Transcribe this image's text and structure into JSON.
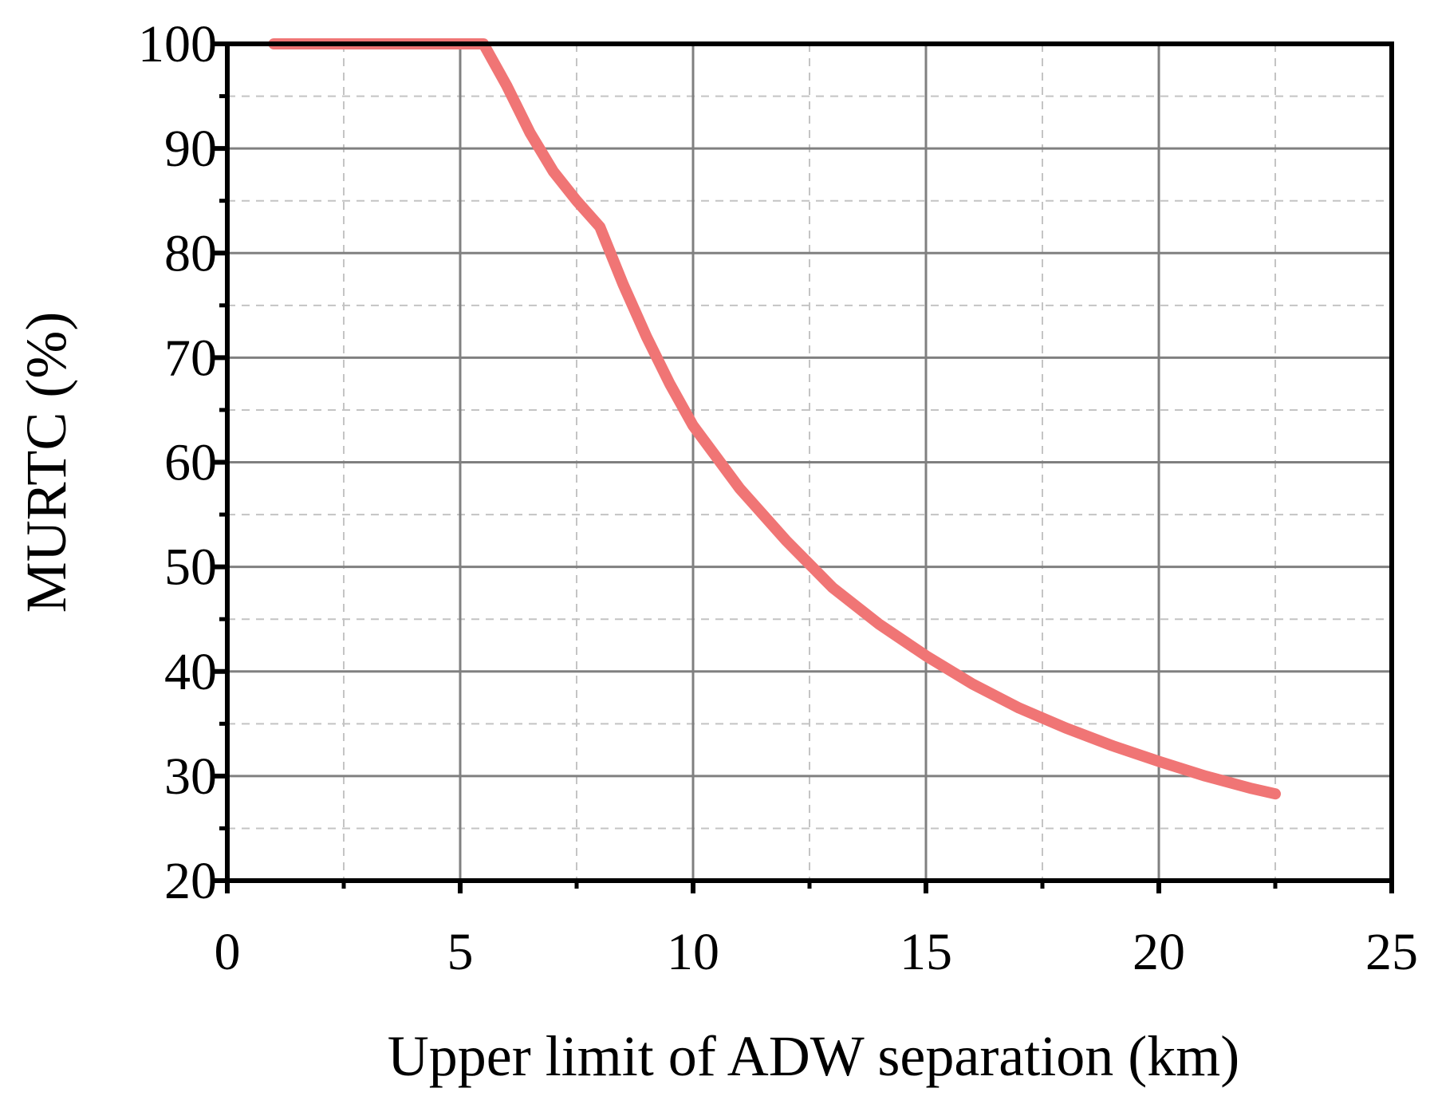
{
  "chart_data": {
    "type": "line",
    "title": "",
    "xlabel": "Upper limit of ADW separation (km)",
    "ylabel": "MURTC (%)",
    "xlim": [
      0,
      25
    ],
    "ylim": [
      20,
      100
    ],
    "xticks": [
      0,
      5,
      10,
      15,
      20,
      25
    ],
    "yticks": [
      20,
      30,
      40,
      50,
      60,
      70,
      80,
      90,
      100
    ],
    "x_minor_step": 2.5,
    "y_minor_step": 5,
    "grid": true,
    "legend": "none",
    "series": [
      {
        "color": "#f07575",
        "x": [
          1.0,
          2.0,
          3.0,
          4.0,
          5.0,
          5.5,
          6.0,
          6.5,
          7.0,
          7.5,
          8.0,
          8.5,
          9.0,
          9.5,
          10.0,
          11.0,
          12.0,
          13.0,
          14.0,
          15.0,
          16.0,
          17.0,
          18.0,
          19.0,
          20.0,
          21.0,
          22.0,
          22.5
        ],
        "y": [
          100,
          100,
          100,
          100,
          100,
          100,
          96.0,
          91.5,
          87.8,
          85.0,
          82.5,
          77.0,
          72.0,
          67.5,
          63.5,
          57.5,
          52.5,
          48.0,
          44.5,
          41.5,
          38.8,
          36.5,
          34.6,
          32.9,
          31.4,
          30.0,
          28.8,
          28.3
        ]
      }
    ]
  }
}
